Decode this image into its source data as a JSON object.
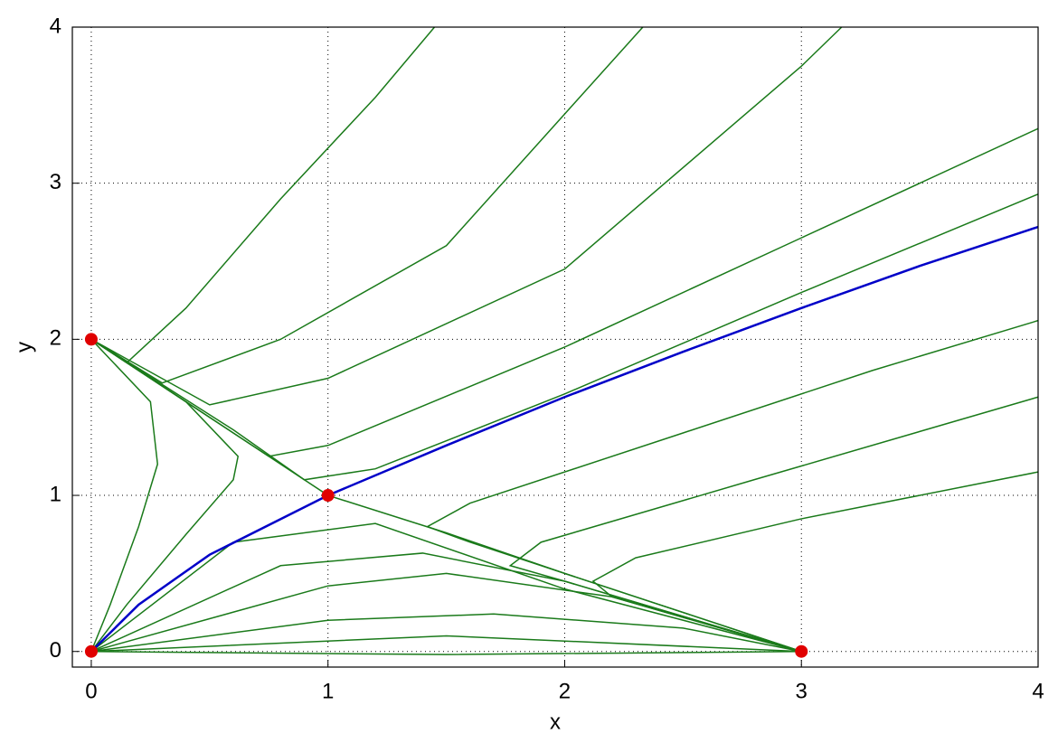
{
  "chart_data": {
    "type": "line",
    "xlabel": "x",
    "ylabel": "y",
    "xlim": [
      -0.08,
      4
    ],
    "ylim": [
      -0.1,
      4
    ],
    "xticks": [
      0,
      1,
      2,
      3,
      4
    ],
    "yticks": [
      0,
      1,
      2,
      3,
      4
    ],
    "grid": true,
    "series": [
      {
        "color": "#0000c8",
        "x": [
          0,
          0.2,
          0.5,
          1,
          1.5,
          2,
          2.5,
          3,
          3.5,
          4
        ],
        "values": [
          0,
          0.3,
          0.62,
          1,
          1.32,
          1.63,
          1.92,
          2.2,
          2.47,
          2.72
        ]
      },
      {
        "color": "#1a7a1a",
        "x": [
          0,
          0.5,
          1,
          1.5,
          2,
          2.5,
          3
        ],
        "values": [
          2,
          1.5,
          1,
          0.76,
          0.5,
          0.25,
          0
        ]
      },
      {
        "color": "#1a7a1a",
        "x": [
          0,
          0.15,
          0.4,
          0.8,
          1.2,
          1.45
        ],
        "values": [
          2,
          1.85,
          2.2,
          2.9,
          3.55,
          4
        ]
      },
      {
        "color": "#1a7a1a",
        "x": [
          0,
          0.3,
          0.8,
          1.5,
          2.33
        ],
        "values": [
          2,
          1.72,
          2,
          2.6,
          4
        ]
      },
      {
        "color": "#1a7a1a",
        "x": [
          0,
          0.5,
          1,
          2,
          3,
          3.17
        ],
        "values": [
          2,
          1.58,
          1.75,
          2.45,
          3.75,
          4
        ]
      },
      {
        "color": "#1a7a1a",
        "x": [
          0,
          0.5,
          0.75,
          1,
          2,
          3,
          4
        ],
        "values": [
          2,
          1.5,
          1.25,
          1.32,
          1.95,
          2.65,
          3.35
        ]
      },
      {
        "color": "#1a7a1a",
        "x": [
          0,
          0.6,
          0.9,
          1.2,
          2,
          3,
          4
        ],
        "values": [
          2,
          1.42,
          1.1,
          1.17,
          1.65,
          2.3,
          2.93
        ]
      },
      {
        "color": "#1a7a1a",
        "x": [
          0,
          0.4,
          0.62,
          0.6,
          0.4,
          0.15,
          0
        ],
        "values": [
          2,
          1.6,
          1.25,
          1.1,
          0.75,
          0.3,
          0
        ]
      },
      {
        "color": "#1a7a1a",
        "x": [
          0,
          0.25,
          0.28,
          0.2,
          0.08,
          0
        ],
        "values": [
          2,
          1.6,
          1.2,
          0.8,
          0.3,
          0
        ]
      },
      {
        "color": "#1a7a1a",
        "x": [
          0,
          0.6,
          1.2,
          2,
          3
        ],
        "values": [
          0,
          0.7,
          0.82,
          0.4,
          0
        ]
      },
      {
        "color": "#1a7a1a",
        "x": [
          0,
          0.8,
          1.4,
          2,
          3
        ],
        "values": [
          0,
          0.55,
          0.63,
          0.45,
          0
        ]
      },
      {
        "color": "#1a7a1a",
        "x": [
          0,
          1,
          1.5,
          2.2,
          3
        ],
        "values": [
          0,
          0.42,
          0.5,
          0.35,
          0
        ]
      },
      {
        "color": "#1a7a1a",
        "x": [
          0,
          1,
          1.7,
          2.5,
          3
        ],
        "values": [
          0,
          0.2,
          0.24,
          0.15,
          0
        ]
      },
      {
        "color": "#1a7a1a",
        "x": [
          0,
          1.5,
          3
        ],
        "values": [
          0,
          0.1,
          0
        ]
      },
      {
        "color": "#1a7a1a",
        "x": [
          0,
          1.5,
          3
        ],
        "values": [
          0,
          -0.02,
          0
        ]
      },
      {
        "color": "#1a7a1a",
        "x": [
          3,
          2.3,
          1.6,
          1.42,
          1.6,
          2.5,
          3.3,
          4
        ],
        "values": [
          0,
          0.35,
          0.7,
          0.8,
          0.95,
          1.4,
          1.8,
          2.12
        ]
      },
      {
        "color": "#1a7a1a",
        "x": [
          3,
          2,
          1.77,
          1.9,
          2.8,
          4
        ],
        "values": [
          0,
          0.45,
          0.55,
          0.7,
          1.1,
          1.63
        ]
      },
      {
        "color": "#1a7a1a",
        "x": [
          3,
          2.2,
          2.12,
          2.3,
          3,
          4
        ],
        "values": [
          0,
          0.35,
          0.45,
          0.6,
          0.85,
          1.15
        ]
      }
    ],
    "equilibria": {
      "color": "#e00000",
      "x": [
        0,
        0,
        1,
        3
      ],
      "values": [
        0,
        2,
        1,
        0
      ]
    }
  }
}
